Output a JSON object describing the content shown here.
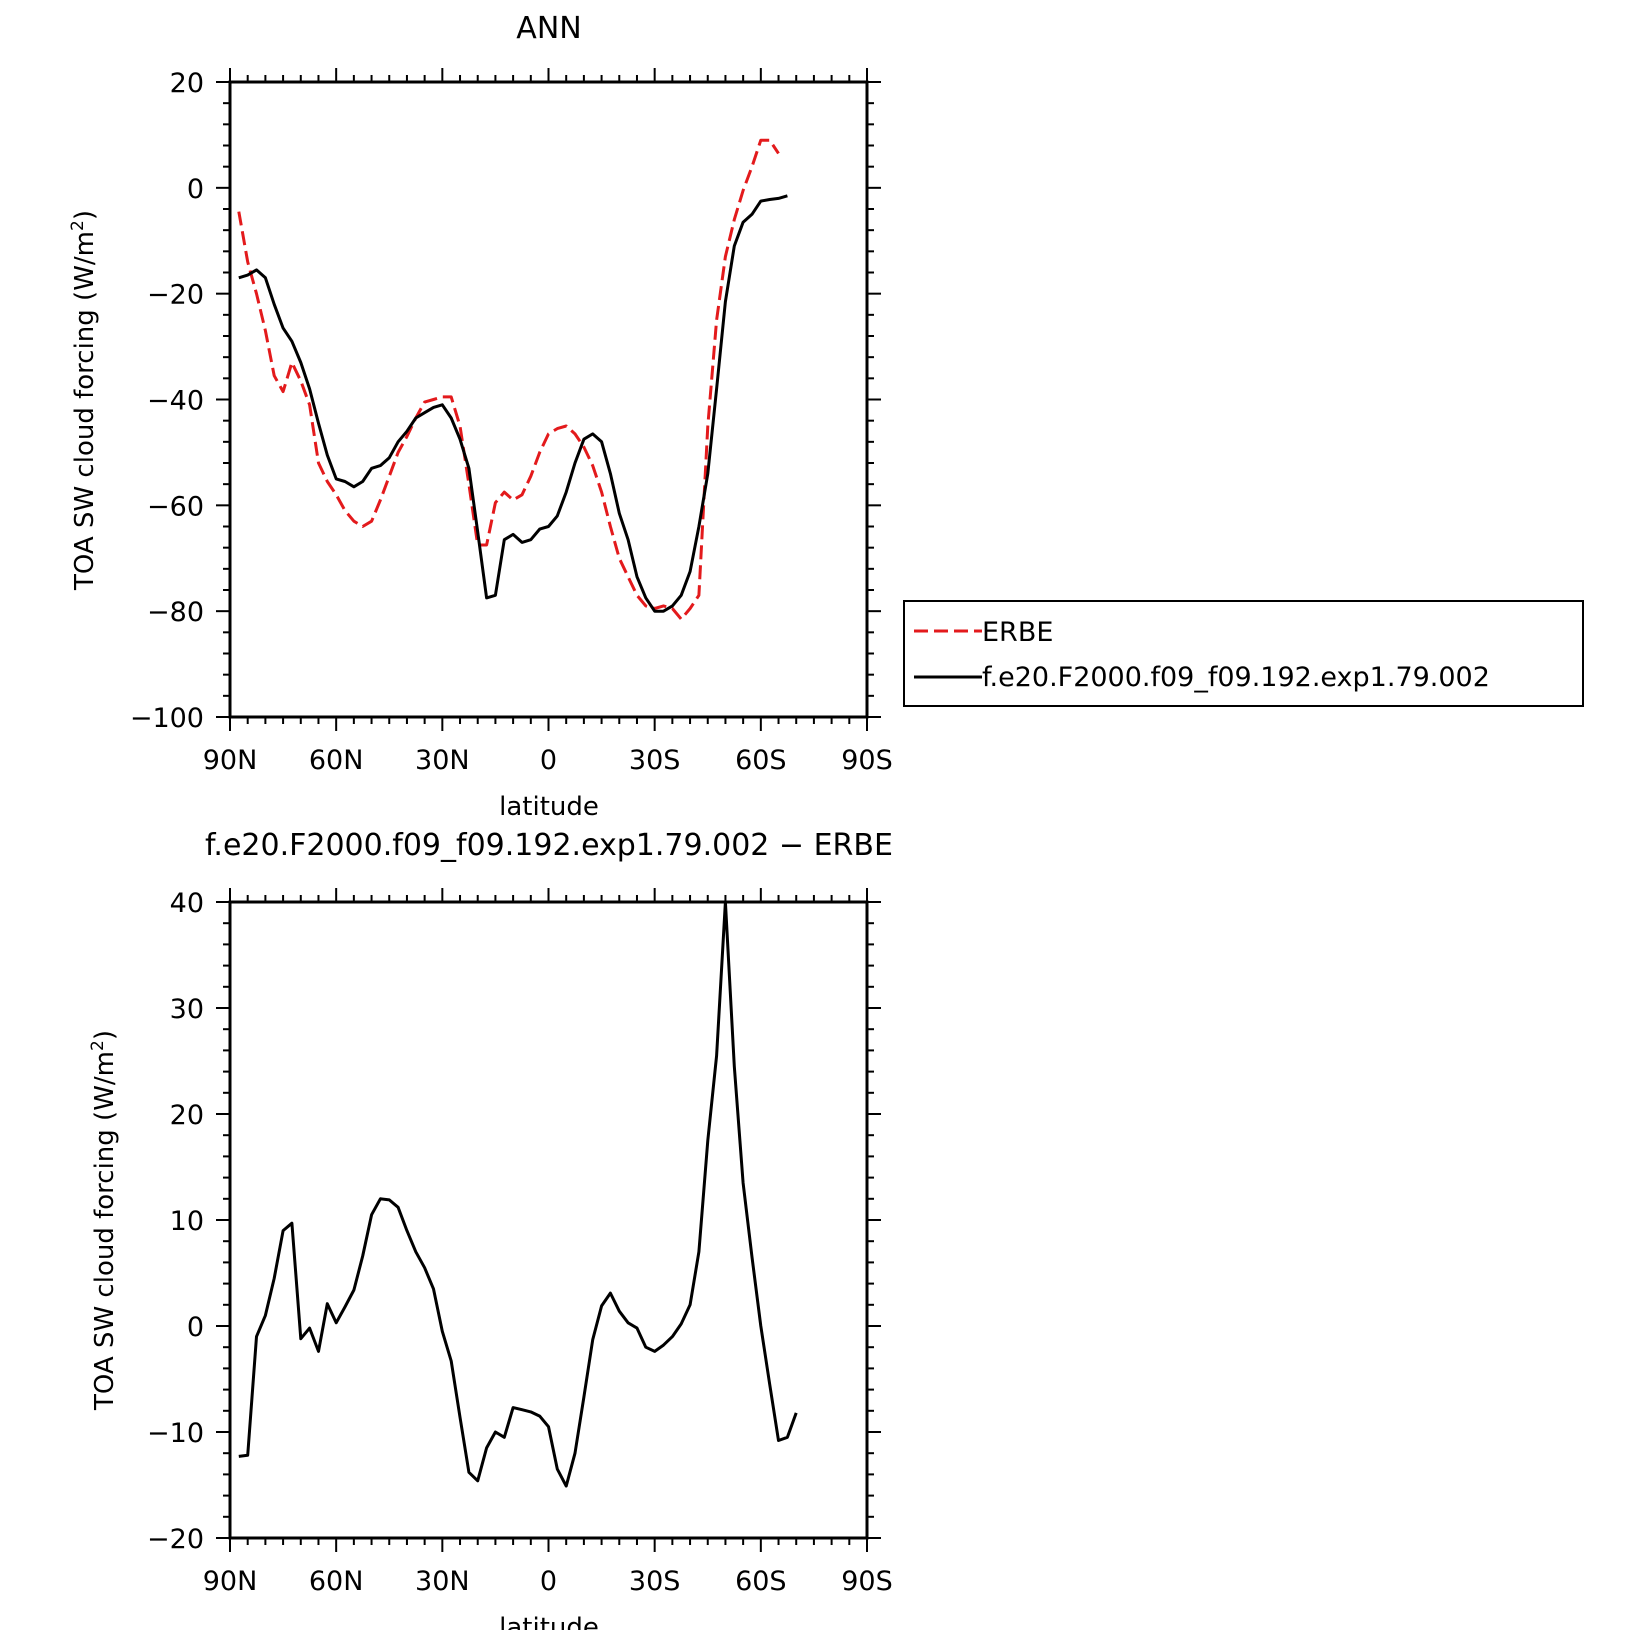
{
  "chart_data": [
    {
      "type": "line",
      "title": "ANN",
      "xlabel": "latitude",
      "ylabel": "TOA SW cloud forcing (W/m",
      "ylabel_sup": "2",
      "ylabel_end": ")",
      "xlim": [
        90,
        -90
      ],
      "ylim": [
        -100,
        20
      ],
      "xticks": [
        90,
        60,
        30,
        0,
        -30,
        -60,
        -90
      ],
      "xticklabels": [
        "90N",
        "60N",
        "30N",
        "0",
        "30S",
        "60S",
        "90S"
      ],
      "yticks": [
        20,
        0,
        -20,
        -40,
        -60,
        -80,
        -100
      ],
      "yticklabels": [
        "20",
        "0",
        "−20",
        "−40",
        "−60",
        "−80",
        "−100"
      ],
      "legend_position": "right",
      "series": [
        {
          "name": "ERBE",
          "color": "#e31a1c",
          "style": "dashed",
          "points": [
            [
              87.5,
              -4.5
            ],
            [
              85,
              -14
            ],
            [
              82.5,
              -20
            ],
            [
              80,
              -27
            ],
            [
              77.5,
              -35.5
            ],
            [
              75,
              -38.5
            ],
            [
              72.5,
              -33
            ],
            [
              70,
              -36.5
            ],
            [
              67.5,
              -41
            ],
            [
              65,
              -52
            ],
            [
              62.5,
              -55.5
            ],
            [
              60,
              -58
            ],
            [
              57.5,
              -61
            ],
            [
              55,
              -63
            ],
            [
              52.5,
              -64
            ],
            [
              50,
              -63
            ],
            [
              47.5,
              -59
            ],
            [
              45,
              -54.5
            ],
            [
              42.5,
              -50
            ],
            [
              40,
              -47
            ],
            [
              37.5,
              -43.5
            ],
            [
              35,
              -40.5
            ],
            [
              32.5,
              -40
            ],
            [
              30,
              -39.5
            ],
            [
              27.5,
              -39.5
            ],
            [
              25,
              -45
            ],
            [
              22.5,
              -56
            ],
            [
              20,
              -67.5
            ],
            [
              17.5,
              -67.5
            ],
            [
              15,
              -59.5
            ],
            [
              12.5,
              -57.5
            ],
            [
              10,
              -59
            ],
            [
              7.5,
              -58
            ],
            [
              5,
              -54.5
            ],
            [
              2.5,
              -50
            ],
            [
              0,
              -46.5
            ],
            [
              -2.5,
              -45.5
            ],
            [
              -5,
              -45
            ],
            [
              -7.5,
              -46.5
            ],
            [
              -10,
              -49
            ],
            [
              -12.5,
              -52.5
            ],
            [
              -15,
              -57.5
            ],
            [
              -17.5,
              -64
            ],
            [
              -20,
              -70
            ],
            [
              -22.5,
              -73.5
            ],
            [
              -25,
              -77
            ],
            [
              -27.5,
              -79
            ],
            [
              -30,
              -79.5
            ],
            [
              -32.5,
              -79
            ],
            [
              -35,
              -79.5
            ],
            [
              -37.5,
              -81.5
            ],
            [
              -40,
              -79.5
            ],
            [
              -42.5,
              -77
            ],
            [
              -45,
              -45
            ],
            [
              -47.5,
              -25
            ],
            [
              -50,
              -13
            ],
            [
              -52.5,
              -6
            ],
            [
              -55,
              -0.5
            ],
            [
              -57.5,
              4
            ],
            [
              -60,
              9
            ],
            [
              -62.5,
              9
            ],
            [
              -65,
              6.5
            ]
          ]
        },
        {
          "name": "f.e20.F2000.f09_f09.192.exp1.79.002",
          "color": "#000000",
          "style": "solid",
          "points": [
            [
              87.5,
              -17
            ],
            [
              85,
              -16.5
            ],
            [
              82.5,
              -15.5
            ],
            [
              80,
              -17
            ],
            [
              77.5,
              -22
            ],
            [
              75,
              -26.5
            ],
            [
              72.5,
              -29
            ],
            [
              70,
              -33
            ],
            [
              67.5,
              -38
            ],
            [
              65,
              -44.5
            ],
            [
              62.5,
              -50.5
            ],
            [
              60,
              -55
            ],
            [
              57.5,
              -55.5
            ],
            [
              55,
              -56.5
            ],
            [
              52.5,
              -55.5
            ],
            [
              50,
              -53
            ],
            [
              47.5,
              -52.5
            ],
            [
              45,
              -51
            ],
            [
              42.5,
              -48
            ],
            [
              40,
              -46
            ],
            [
              37.5,
              -43.5
            ],
            [
              35,
              -42.5
            ],
            [
              32.5,
              -41.5
            ],
            [
              30,
              -41
            ],
            [
              27.5,
              -43.5
            ],
            [
              25,
              -47.5
            ],
            [
              22.5,
              -53
            ],
            [
              20,
              -65
            ],
            [
              17.5,
              -77.5
            ],
            [
              15,
              -77
            ],
            [
              12.5,
              -66.5
            ],
            [
              10,
              -65.5
            ],
            [
              7.5,
              -67
            ],
            [
              5,
              -66.5
            ],
            [
              2.5,
              -64.5
            ],
            [
              0,
              -64
            ],
            [
              -2.5,
              -62
            ],
            [
              -5,
              -57.5
            ],
            [
              -7.5,
              -52
            ],
            [
              -10,
              -47.5
            ],
            [
              -12.5,
              -46.5
            ],
            [
              -15,
              -48
            ],
            [
              -17.5,
              -54
            ],
            [
              -20,
              -61.5
            ],
            [
              -22.5,
              -66.5
            ],
            [
              -25,
              -73.5
            ],
            [
              -27.5,
              -77.5
            ],
            [
              -30,
              -80
            ],
            [
              -32.5,
              -80
            ],
            [
              -35,
              -79
            ],
            [
              -37.5,
              -77
            ],
            [
              -40,
              -72.5
            ],
            [
              -42.5,
              -64
            ],
            [
              -45,
              -54
            ],
            [
              -47.5,
              -38
            ],
            [
              -50,
              -21.5
            ],
            [
              -52.5,
              -11
            ],
            [
              -55,
              -6.5
            ],
            [
              -57.5,
              -5
            ],
            [
              -60,
              -2.5
            ],
            [
              -62.5,
              -2.2
            ],
            [
              -65,
              -2
            ],
            [
              -67.5,
              -1.5
            ]
          ]
        }
      ]
    },
    {
      "type": "line",
      "title": "f.e20.F2000.f09_f09.192.exp1.79.002 − ERBE",
      "xlabel": "latitude",
      "ylabel": "TOA SW cloud forcing (W/m",
      "ylabel_sup": "2",
      "ylabel_end": ")",
      "xlim": [
        90,
        -90
      ],
      "ylim": [
        -20,
        40
      ],
      "xticks": [
        90,
        60,
        30,
        0,
        -30,
        -60,
        -90
      ],
      "xticklabels": [
        "90N",
        "60N",
        "30N",
        "0",
        "30S",
        "60S",
        "90S"
      ],
      "yticks": [
        40,
        30,
        20,
        10,
        0,
        -10,
        -20
      ],
      "yticklabels": [
        "40",
        "30",
        "20",
        "10",
        "0",
        "−10",
        "−20"
      ],
      "series": [
        {
          "color": "#000000",
          "style": "solid",
          "points": [
            [
              87.5,
              -12.3
            ],
            [
              85,
              -12.2
            ],
            [
              82.5,
              -1
            ],
            [
              80,
              1
            ],
            [
              77.5,
              4.5
            ],
            [
              75,
              9
            ],
            [
              72.5,
              9.7
            ],
            [
              70,
              -1.2
            ],
            [
              67.5,
              -0.2
            ],
            [
              65,
              -2.4
            ],
            [
              62.5,
              2.1
            ],
            [
              60,
              0.3
            ],
            [
              57.5,
              1.8
            ],
            [
              55,
              3.4
            ],
            [
              52.5,
              6.6
            ],
            [
              50,
              10.5
            ],
            [
              47.5,
              12
            ],
            [
              45,
              11.9
            ],
            [
              42.5,
              11.2
            ],
            [
              40,
              9
            ],
            [
              37.5,
              7
            ],
            [
              35,
              5.5
            ],
            [
              32.5,
              3.5
            ],
            [
              30,
              -0.5
            ],
            [
              27.5,
              -3.3
            ],
            [
              25,
              -8.6
            ],
            [
              22.5,
              -13.8
            ],
            [
              20,
              -14.6
            ],
            [
              17.5,
              -11.5
            ],
            [
              15,
              -10
            ],
            [
              12.5,
              -10.5
            ],
            [
              10,
              -7.7
            ],
            [
              7.5,
              -7.9
            ],
            [
              5,
              -8.1
            ],
            [
              2.5,
              -8.5
            ],
            [
              0,
              -9.5
            ],
            [
              -2.5,
              -13.5
            ],
            [
              -5,
              -15.1
            ],
            [
              -7.5,
              -12
            ],
            [
              -10,
              -6.7
            ],
            [
              -12.5,
              -1.3
            ],
            [
              -15,
              1.9
            ],
            [
              -17.5,
              3.1
            ],
            [
              -20,
              1.4
            ],
            [
              -22.5,
              0.3
            ],
            [
              -25,
              -0.2
            ],
            [
              -27.5,
              -2
            ],
            [
              -30,
              -2.4
            ],
            [
              -32.5,
              -1.8
            ],
            [
              -35,
              -1
            ],
            [
              -37.5,
              0.2
            ],
            [
              -40,
              2
            ],
            [
              -42.5,
              7
            ],
            [
              -45,
              17.5
            ],
            [
              -47.5,
              25.5
            ],
            [
              -50,
              40
            ],
            [
              -52.5,
              24.5
            ],
            [
              -55,
              13.5
            ],
            [
              -57.5,
              6.5
            ],
            [
              -60,
              0
            ],
            [
              -62.5,
              -5.5
            ],
            [
              -65,
              -10.8
            ],
            [
              -67.5,
              -10.5
            ],
            [
              -70,
              -8.2
            ]
          ]
        }
      ]
    }
  ]
}
